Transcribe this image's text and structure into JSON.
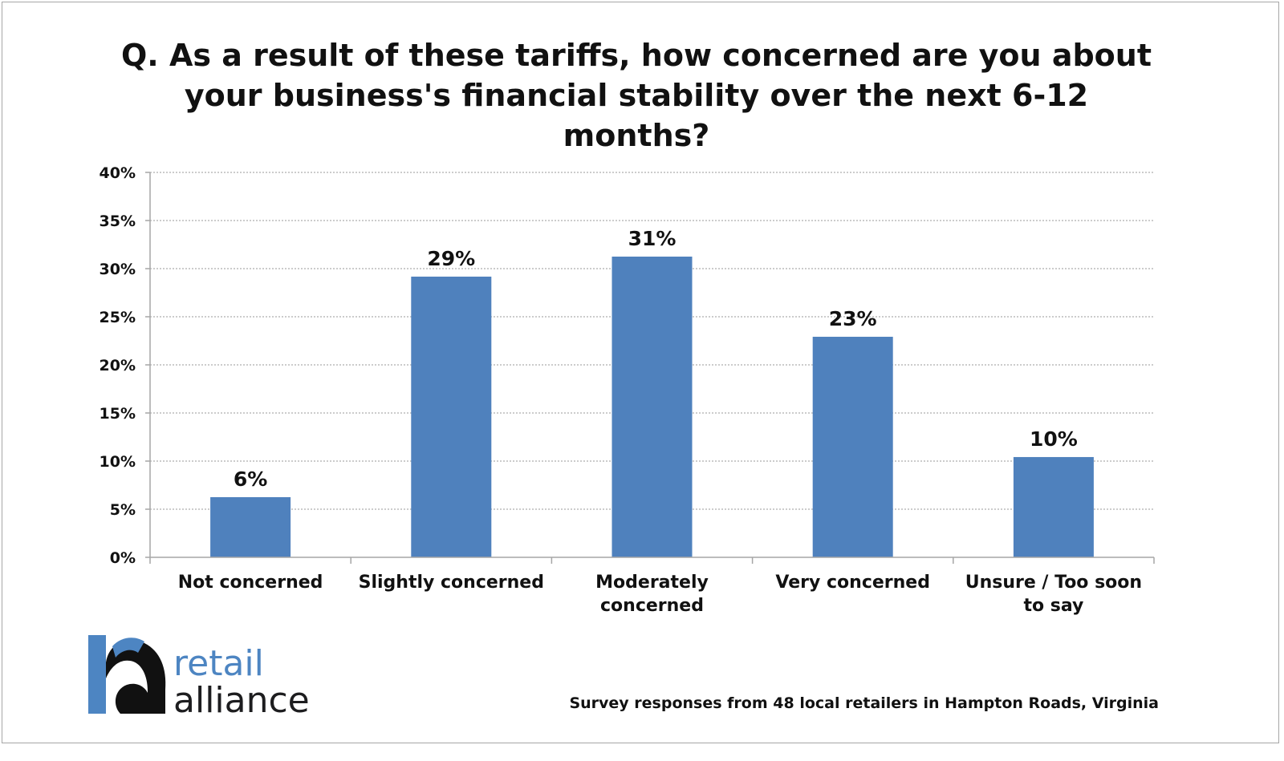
{
  "chart_data": {
    "type": "bar",
    "title": "Q. As a result of these tariffs, how concerned are you about your business's financial stability over the next 6-12 months?",
    "categories": [
      [
        "Not concerned"
      ],
      [
        "Slightly concerned"
      ],
      [
        "Moderately",
        "concerned"
      ],
      [
        "Very concerned"
      ],
      [
        "Unsure / Too soon",
        "to say"
      ]
    ],
    "values": [
      6.25,
      29.17,
      31.25,
      22.92,
      10.42
    ],
    "data_labels": [
      "6%",
      "29%",
      "31%",
      "23%",
      "10%"
    ],
    "y_ticks": [
      0,
      5,
      10,
      15,
      20,
      25,
      30,
      35,
      40
    ],
    "y_tick_labels": [
      "0%",
      "5%",
      "10%",
      "15%",
      "20%",
      "25%",
      "30%",
      "35%",
      "40%"
    ],
    "ylim": [
      0,
      40
    ],
    "xlabel": "",
    "ylabel": "",
    "grid": true,
    "bar_color": "#4f81bd",
    "grid_color": "#9a9a9a",
    "axis_color": "#a6a6a6"
  },
  "logo": {
    "word_top": "retail",
    "word_bottom": "alliance",
    "brand_blue": "#4d85c2",
    "brand_dark": "#111111"
  },
  "footnote": "Survey responses from 48 local retailers in Hampton Roads, Virginia"
}
